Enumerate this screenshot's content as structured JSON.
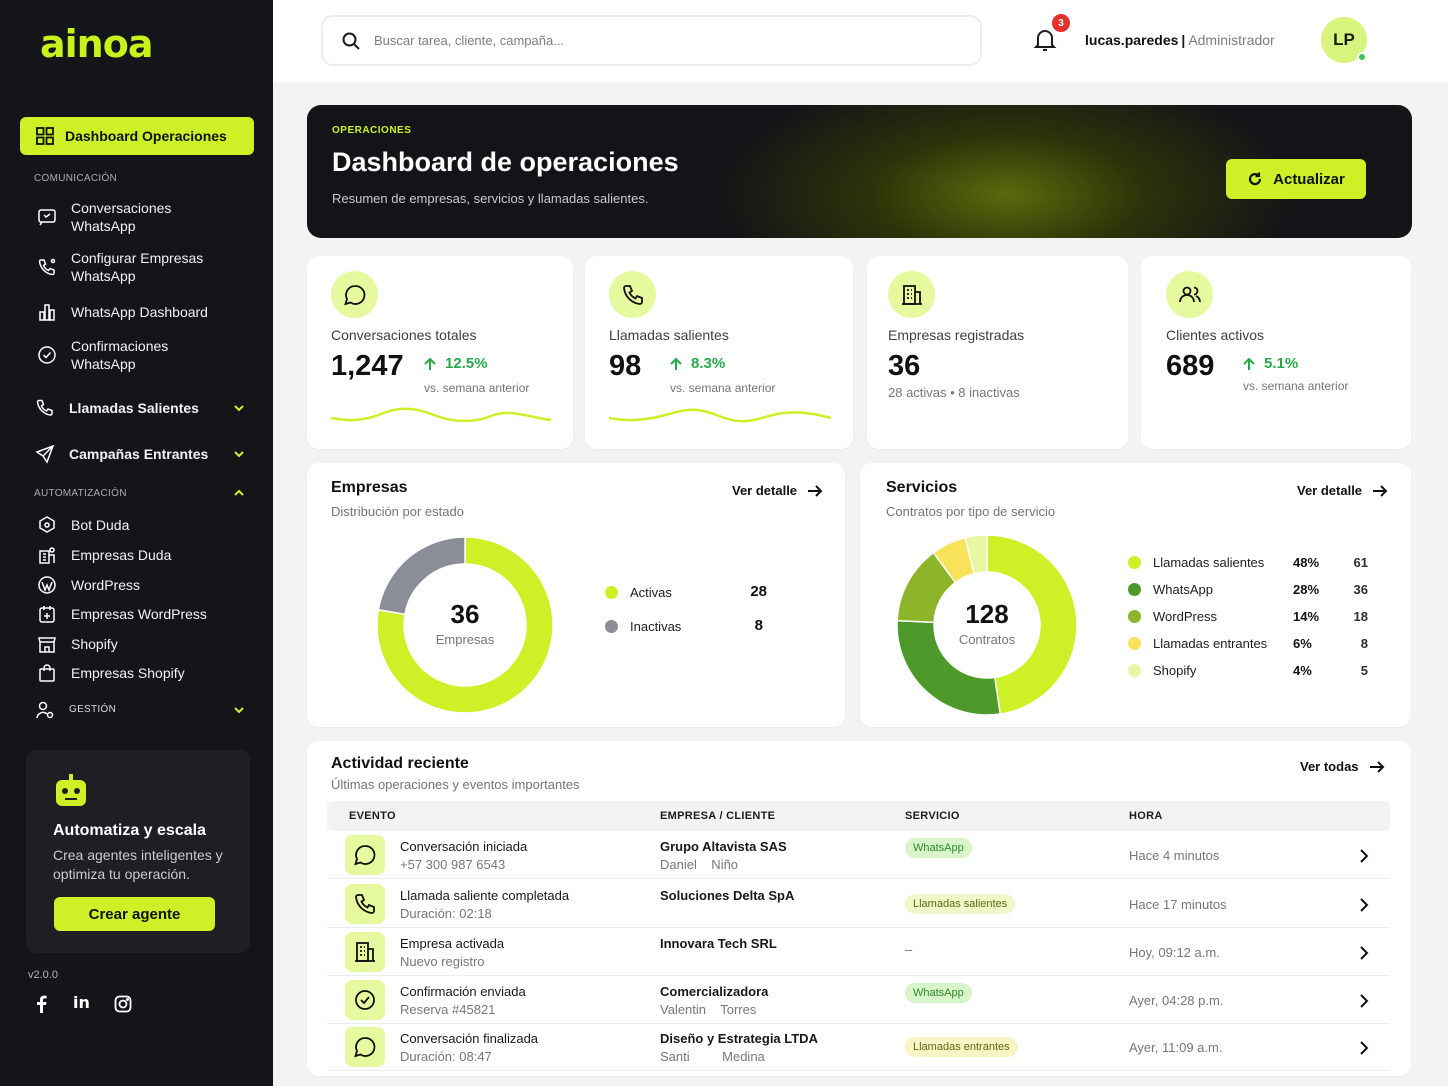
{
  "brand": {
    "logo": "ainoa",
    "version": "v2.0.0"
  },
  "sidebar": {
    "active": "Dashboard Operaciones",
    "section_comunicacion": "COMUNICACIÓN",
    "items_com": [
      {
        "line1": "Conversaciones",
        "line2": "WhatsApp"
      },
      {
        "line1": "Configurar Empresas",
        "line2": "WhatsApp"
      },
      {
        "line1": "WhatsApp Dashboard",
        "line2": ""
      },
      {
        "line1": "Confirmaciones",
        "line2": "WhatsApp"
      }
    ],
    "llamadas": "Llamadas Salientes",
    "campanas": "Campañas Entrantes",
    "section_automatizacion": "AUTOMATIZACIÓN",
    "items_auto": [
      "Bot Duda",
      "Empresas Duda",
      "WordPress",
      "Empresas WordPress",
      "Shopify",
      "Empresas Shopify"
    ],
    "gestion": "GESTIÓN",
    "promo": {
      "title": "Automatiza y escala",
      "text": "Crea agentes inteligentes y optimiza tu operación.",
      "button": "Crear agente"
    },
    "social": [
      "f",
      "in",
      "ig"
    ]
  },
  "topbar": {
    "search_placeholder": "Buscar tarea, cliente, campaña...",
    "notifications": "3",
    "username": "lucas.paredes",
    "separator": "|",
    "role": "Administrador",
    "initials": "LP"
  },
  "hero": {
    "kicker": "OPERACIONES",
    "title": "Dashboard de operaciones",
    "subtitle": "Resumen de empresas, servicios y llamadas salientes.",
    "button": "Actualizar"
  },
  "stats": [
    {
      "label": "Conversaciones totales",
      "value": "1,247",
      "trend": "12.5%",
      "note": "vs. semana anterior"
    },
    {
      "label": "Llamadas salientes",
      "value": "98",
      "trend": "8.3%",
      "note": "vs. semana anterior"
    },
    {
      "label": "Empresas registradas",
      "value": "36",
      "note": "28 activas • 8 inactivas"
    },
    {
      "label": "Clientes activos",
      "value": "689",
      "trend": "5.1%",
      "note": "vs. semana anterior"
    }
  ],
  "empresas": {
    "title": "Empresas",
    "subtitle": "Distribución por estado",
    "link": "Ver detalle",
    "center_value": "36",
    "center_label": "Empresas",
    "legend": [
      {
        "label": "Activas",
        "value": "28",
        "color": "#cdf126"
      },
      {
        "label": "Inactivas",
        "value": "8",
        "color": "#8b8d97"
      }
    ]
  },
  "servicios": {
    "title": "Servicios",
    "subtitle": "Contratos por tipo de servicio",
    "link": "Ver detalle",
    "center_value": "128",
    "center_label": "Contratos",
    "legend": [
      {
        "label": "Llamadas salientes",
        "pct": "48%",
        "count": "61",
        "color": "#cdf126"
      },
      {
        "label": "WhatsApp",
        "pct": "28%",
        "count": "36",
        "color": "#4d9a2b"
      },
      {
        "label": "WordPress",
        "pct": "14%",
        "count": "18",
        "color": "#8db52a"
      },
      {
        "label": "Llamadas entrantes",
        "pct": "6%",
        "count": "8",
        "color": "#f7e25a"
      },
      {
        "label": "Shopify",
        "pct": "4%",
        "count": "5",
        "color": "#e8f7a2"
      }
    ]
  },
  "chart_data": [
    {
      "type": "pie",
      "title": "Empresas",
      "categories": [
        "Activas",
        "Inactivas"
      ],
      "values": [
        28,
        8
      ]
    },
    {
      "type": "pie",
      "title": "Servicios",
      "categories": [
        "Llamadas salientes",
        "WhatsApp",
        "WordPress",
        "Llamadas entrantes",
        "Shopify"
      ],
      "values": [
        61,
        36,
        18,
        8,
        5
      ]
    }
  ],
  "actividad": {
    "title": "Actividad reciente",
    "subtitle": "Últimas operaciones y eventos importantes",
    "link": "Ver todas",
    "headers": [
      "EVENTO",
      "EMPRESA / CLIENTE",
      "SERVICIO",
      "HORA"
    ],
    "rows": [
      {
        "icon": "chat-icon",
        "event": "Conversación iniciada",
        "detail": "+57 300 987 6543",
        "company": "Grupo Altavista SAS",
        "contact": "Daniel    Niño",
        "service": "WhatsApp",
        "service_kind": "wa",
        "time": "Hace 4 minutos"
      },
      {
        "icon": "phone-icon",
        "event": "Llamada saliente completada",
        "detail": "Duración: 02:18",
        "company": "Soluciones Delta SpA",
        "contact": "",
        "service": "Llamadas salientes",
        "service_kind": "ls",
        "time": "Hace 17 minutos"
      },
      {
        "icon": "building-icon",
        "event": "Empresa activada",
        "detail": "Nuevo registro",
        "company": "Innovara Tech SRL",
        "contact": "",
        "service": "–",
        "service_kind": "none",
        "time": "Hoy, 09:12 a.m."
      },
      {
        "icon": "check-circle-icon",
        "event": "Confirmación enviada",
        "detail": "Reserva #45821",
        "company": "Comercializadora",
        "contact": "Valentin    Torres",
        "service": "WhatsApp",
        "service_kind": "wa",
        "time": "Ayer, 04:28 p.m."
      },
      {
        "icon": "chat-icon",
        "event": "Conversación finalizada",
        "detail": "Duración: 08:47",
        "company": "Diseño y Estrategia LTDA",
        "contact": "Santi         Medina",
        "service": "Llamadas entrantes",
        "service_kind": "le",
        "time": "Ayer, 11:09 a.m."
      }
    ]
  }
}
